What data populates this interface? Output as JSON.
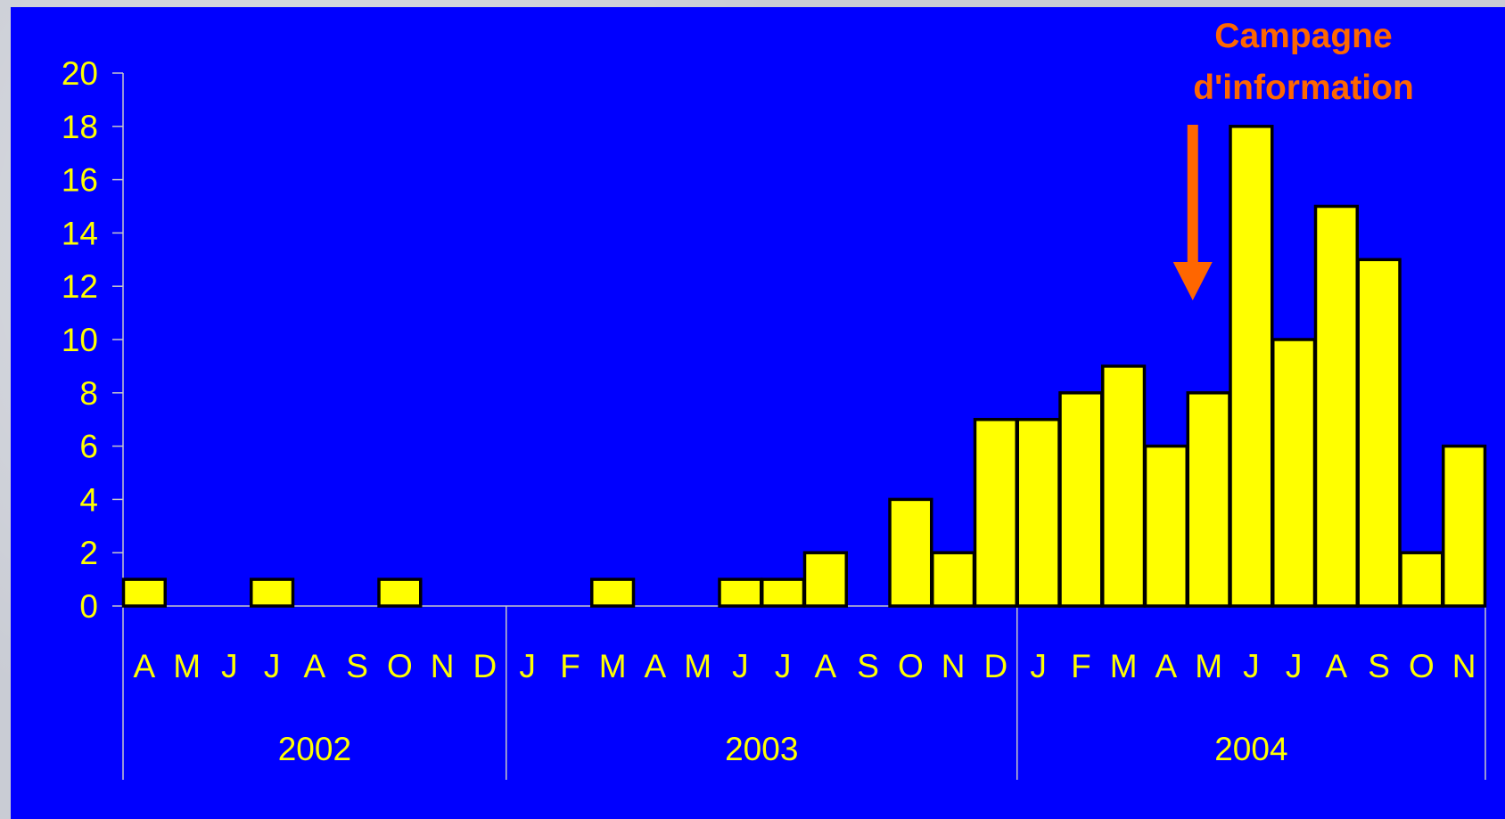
{
  "chart_data": {
    "type": "bar",
    "categories": [
      "A",
      "M",
      "J",
      "J",
      "A",
      "S",
      "O",
      "N",
      "D",
      "J",
      "F",
      "M",
      "A",
      "M",
      "J",
      "J",
      "A",
      "S",
      "O",
      "N",
      "D",
      "J",
      "F",
      "M",
      "A",
      "M",
      "J",
      "J",
      "A",
      "S",
      "O",
      "N"
    ],
    "years": [
      {
        "label": "2002",
        "start": 0,
        "end": 9
      },
      {
        "label": "2003",
        "start": 9,
        "end": 21
      },
      {
        "label": "2004",
        "start": 21,
        "end": 32
      }
    ],
    "values": [
      1,
      0,
      0,
      1,
      0,
      0,
      1,
      0,
      0,
      0,
      0,
      1,
      0,
      0,
      1,
      1,
      2,
      0,
      4,
      2,
      7,
      7,
      8,
      9,
      6,
      8,
      18,
      10,
      15,
      13,
      2,
      6
    ],
    "ylim": [
      0,
      20
    ],
    "yticks": [
      "0",
      "2",
      "4",
      "6",
      "8",
      "10",
      "12",
      "14",
      "16",
      "18",
      "20"
    ],
    "title": "",
    "xlabel": "",
    "ylabel": "",
    "colors": {
      "background": "#0000ff",
      "bar": "#ffff00",
      "bar_border": "#000000",
      "text": "#ffff00",
      "axis": "#c8c8c8",
      "annotation": "#ff6600"
    },
    "annotation": {
      "lines": [
        "Campagne",
        "d'information"
      ],
      "points_to_category_index": 25
    }
  }
}
